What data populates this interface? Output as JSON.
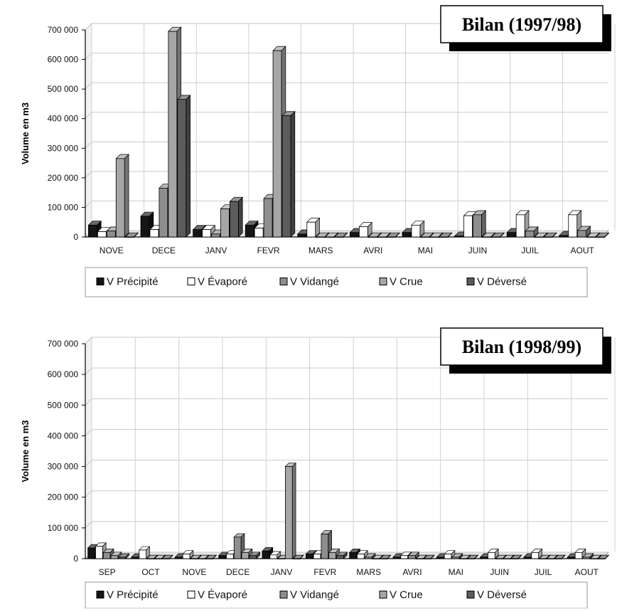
{
  "colors": {
    "precipite": "#151515",
    "evapore": "#ffffff",
    "vidange": "#8e8e8e",
    "crue": "#a6a6a6",
    "deverse": "#5c5c5c",
    "grid": "#c8c8c8"
  },
  "chart_data": [
    {
      "type": "bar",
      "title": "Bilan (1997/98)",
      "ylabel": "Volume en m3",
      "xlabel": "",
      "ylim": [
        0,
        700000
      ],
      "yticks": [
        "0",
        "100 000",
        "200 000",
        "300 000",
        "400 000",
        "500 000",
        "600 000",
        "700 000"
      ],
      "grid": true,
      "legend_position": "bottom",
      "categories": [
        "NOVE",
        "DECE",
        "JANV",
        "FEVR",
        "MARS",
        "AVRI",
        "MAI",
        "JUIN",
        "JUIL",
        "AOUT"
      ],
      "series": [
        {
          "name": "V Précipité",
          "color_key": "precipite",
          "values": [
            40000,
            70000,
            25000,
            40000,
            10000,
            15000,
            15000,
            3000,
            15000,
            5000
          ]
        },
        {
          "name": "V Évaporé",
          "color_key": "evapore",
          "values": [
            18000,
            25000,
            25000,
            30000,
            50000,
            35000,
            40000,
            72000,
            75000,
            75000
          ]
        },
        {
          "name": "V Vidangé",
          "color_key": "vidange",
          "values": [
            20000,
            165000,
            10000,
            130000,
            0,
            0,
            0,
            75000,
            20000,
            22000
          ]
        },
        {
          "name": "V Crue",
          "color_key": "crue",
          "values": [
            265000,
            695000,
            95000,
            630000,
            0,
            0,
            0,
            0,
            0,
            0
          ]
        },
        {
          "name": "V Déversé",
          "color_key": "deverse",
          "values": [
            0,
            465000,
            120000,
            410000,
            0,
            0,
            0,
            0,
            0,
            0
          ]
        }
      ]
    },
    {
      "type": "bar",
      "title": "Bilan (1998/99)",
      "ylabel": "Volume en m3",
      "xlabel": "",
      "ylim": [
        0,
        700000
      ],
      "yticks": [
        "0",
        "100 000",
        "200 000",
        "300 000",
        "400 000",
        "500 000",
        "600 000",
        "700 000"
      ],
      "grid": true,
      "legend_position": "bottom",
      "categories": [
        "SEP",
        "OCT",
        "NOVE",
        "DECE",
        "JANV",
        "FEVR",
        "MARS",
        "AVRI",
        "MAI",
        "JUIN",
        "JUIL",
        "AOUT"
      ],
      "series": [
        {
          "name": "V Précipité",
          "color_key": "precipite",
          "values": [
            35000,
            5000,
            5000,
            10000,
            25000,
            15000,
            20000,
            5000,
            5000,
            5000,
            5000,
            5000
          ]
        },
        {
          "name": "V Évaporé",
          "color_key": "evapore",
          "values": [
            40000,
            28000,
            15000,
            15000,
            12000,
            15000,
            15000,
            10000,
            15000,
            20000,
            20000,
            20000
          ]
        },
        {
          "name": "V Vidangé",
          "color_key": "vidange",
          "values": [
            20000,
            0,
            0,
            70000,
            0,
            80000,
            5000,
            10000,
            5000,
            0,
            0,
            5000
          ]
        },
        {
          "name": "V Crue",
          "color_key": "crue",
          "values": [
            10000,
            0,
            0,
            20000,
            300000,
            20000,
            0,
            0,
            0,
            0,
            0,
            0
          ]
        },
        {
          "name": "V Déversé",
          "color_key": "deverse",
          "values": [
            5000,
            0,
            0,
            10000,
            0,
            10000,
            0,
            0,
            0,
            0,
            0,
            0
          ]
        }
      ]
    }
  ]
}
